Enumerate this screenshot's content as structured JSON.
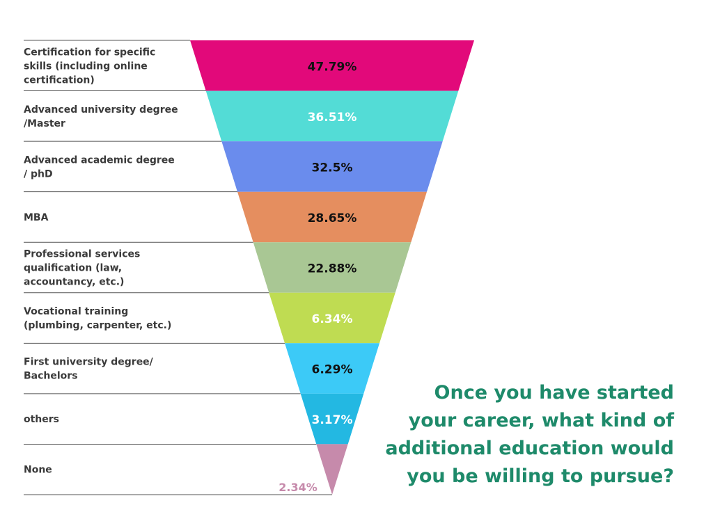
{
  "chart_data": {
    "type": "funnel",
    "title": "Once you have started your career, what kind of additional education would you be willing to pursue?",
    "title_lines": [
      "Once you have started",
      "your career, what kind of",
      "additional education would",
      "you be willing to pursue?"
    ],
    "unit": "%",
    "categories": [
      "Certification for specific skills (including online certification)",
      "Advanced university degree /Master",
      "Advanced academic degree / phD",
      "MBA",
      "Professional services qualification (law, accountancy, etc.)",
      "Vocational training (plumbing, carpenter, etc.)",
      "First university degree/ Bachelors",
      "others",
      "None"
    ],
    "category_lines": [
      [
        "Certification for specific",
        "skills (including online",
        "certification)"
      ],
      [
        "Advanced university degree",
        "/Master"
      ],
      [
        "Advanced academic degree",
        "/ phD"
      ],
      [
        "MBA"
      ],
      [
        "Professional services",
        "qualification (law,",
        "accountancy, etc.)"
      ],
      [
        "Vocational training",
        "(plumbing, carpenter, etc.)"
      ],
      [
        "First university degree/",
        "Bachelors"
      ],
      [
        "others"
      ],
      [
        "None"
      ]
    ],
    "values": [
      47.79,
      36.51,
      32.5,
      28.65,
      22.88,
      6.34,
      6.29,
      3.17,
      2.34
    ],
    "value_labels": [
      "47.79%",
      "36.51%",
      "32.5%",
      "28.65%",
      "22.88%",
      "6.34%",
      "6.29%",
      "3.17%",
      "2.34%"
    ],
    "colors": [
      "#e2097a",
      "#53dcd6",
      "#6a8ced",
      "#e58e5f",
      "#a9c794",
      "#bfdc52",
      "#3ccaf7",
      "#23b8e2",
      "#c68aab"
    ],
    "label_colors": [
      "#111111",
      "#ffffff",
      "#111111",
      "#111111",
      "#111111",
      "#ffffff",
      "#111111",
      "#ffffff",
      "#c68aab"
    ],
    "title_color": "#1e8a6a",
    "label_text_color": "#3a3a3a",
    "divider_color": "#555555"
  }
}
